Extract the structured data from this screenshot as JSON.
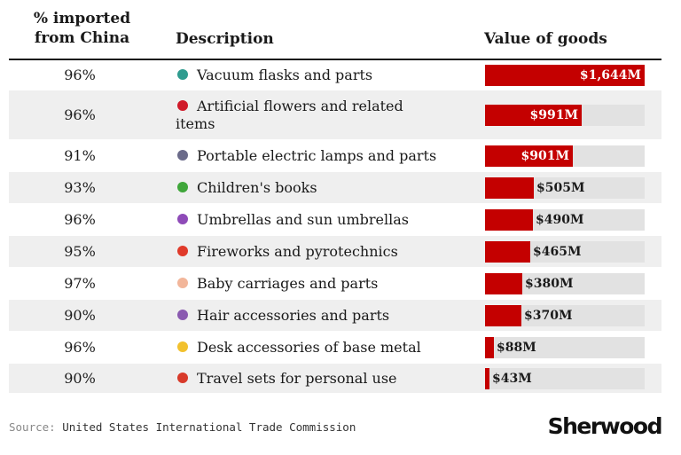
{
  "header": {
    "pct_label_line1": "% imported",
    "pct_label_line2": "from China",
    "desc_label": "Description",
    "value_label": "Value of goods"
  },
  "chart_data": {
    "type": "bar",
    "value_unit": "$M",
    "xlim": [
      0,
      1644
    ],
    "rows": [
      {
        "pct": "96%",
        "desc": "Vacuum flasks and parts",
        "value": 1644,
        "value_label": "$1,644M",
        "icon": "flask-icon",
        "icon_color": "#2f9c8f"
      },
      {
        "pct": "96%",
        "desc": "Artificial flowers and related items",
        "value": 991,
        "value_label": "$991M",
        "icon": "rose-icon",
        "icon_color": "#d01a2a"
      },
      {
        "pct": "91%",
        "desc": "Portable electric lamps and parts",
        "value": 901,
        "value_label": "$901M",
        "icon": "flashlight-icon",
        "icon_color": "#6b6b8a"
      },
      {
        "pct": "93%",
        "desc": "Children's books",
        "value": 505,
        "value_label": "$505M",
        "icon": "crayon-icon",
        "icon_color": "#3fa63a"
      },
      {
        "pct": "96%",
        "desc": "Umbrellas and sun umbrellas",
        "value": 490,
        "value_label": "$490M",
        "icon": "umbrella-icon",
        "icon_color": "#8e4bb8"
      },
      {
        "pct": "95%",
        "desc": "Fireworks and pyrotechnics",
        "value": 465,
        "value_label": "$465M",
        "icon": "firecracker-icon",
        "icon_color": "#e03a2a"
      },
      {
        "pct": "97%",
        "desc": "Baby carriages and parts",
        "value": 380,
        "value_label": "$380M",
        "icon": "baby-icon",
        "icon_color": "#f2b69a"
      },
      {
        "pct": "90%",
        "desc": "Hair accessories and parts",
        "value": 370,
        "value_label": "$370M",
        "icon": "hair-pick-icon",
        "icon_color": "#8a5ab0"
      },
      {
        "pct": "96%",
        "desc": "Desk accessories of base metal",
        "value": 88,
        "value_label": "$88M",
        "icon": "folder-icon",
        "icon_color": "#f2c12e"
      },
      {
        "pct": "90%",
        "desc": "Travel sets for personal use",
        "value": 43,
        "value_label": "$43M",
        "icon": "nail-file-icon",
        "icon_color": "#d83a2a"
      }
    ]
  },
  "source": {
    "label": "Source:",
    "text": "United States International Trade Commission"
  },
  "brand": "Sherwood"
}
